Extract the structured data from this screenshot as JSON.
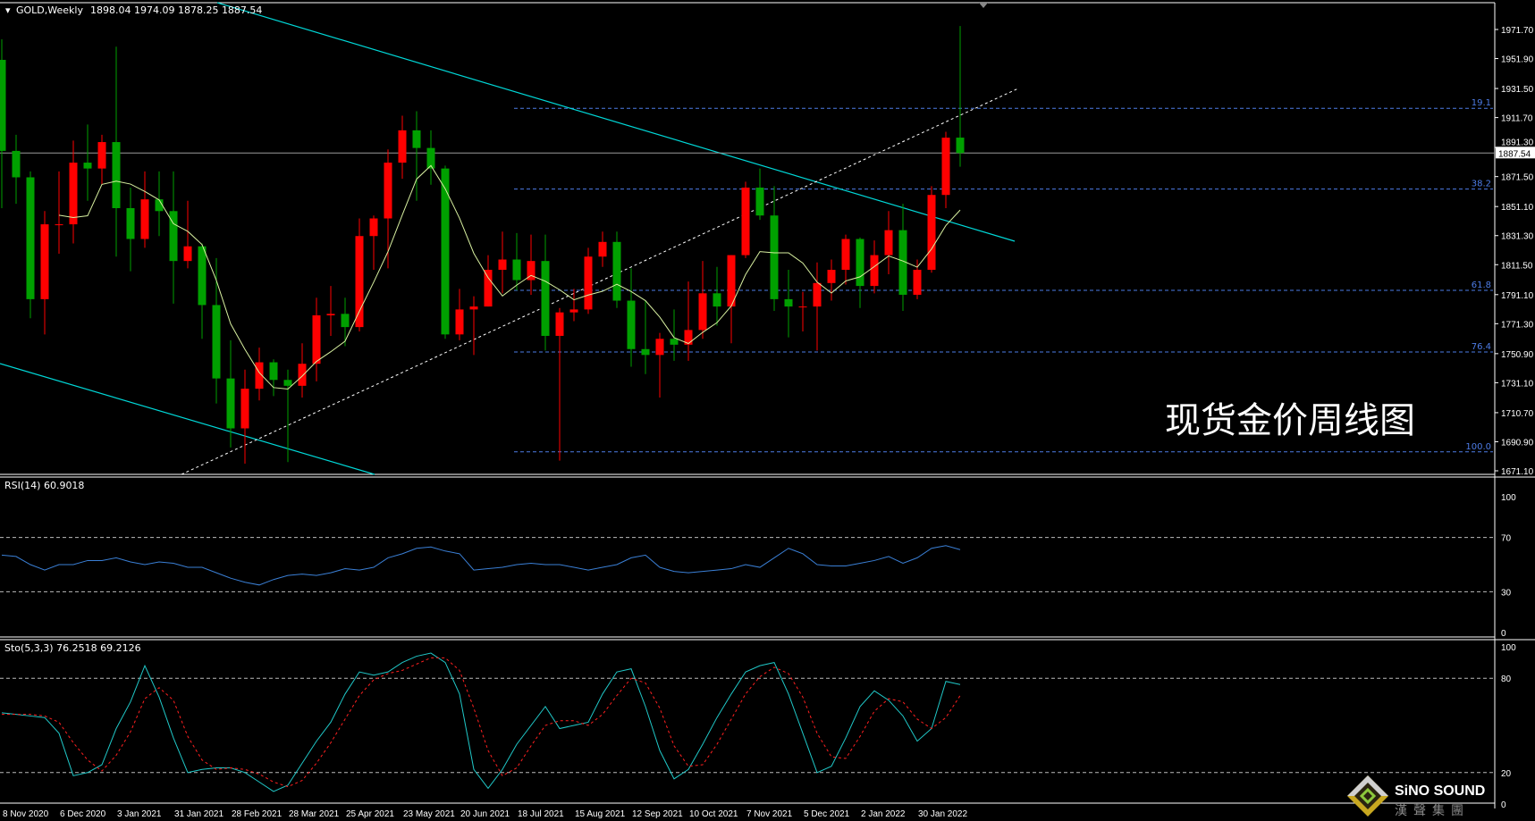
{
  "chart_data": [
    {
      "type": "candlestick",
      "header": {
        "symbol": "GOLD,Weekly",
        "ohlc": "1898.04 1974.09 1878.25 1887.54"
      },
      "overlay_text": "现货金价周线图",
      "current_price_label": "1887.54",
      "y_ticks": [
        "1971.70",
        "1951.90",
        "1931.50",
        "1911.70",
        "1891.30",
        "1871.50",
        "1851.10",
        "1831.30",
        "1811.50",
        "1791.10",
        "1771.30",
        "1750.90",
        "1731.10",
        "1710.70",
        "1690.90",
        "1671.10"
      ],
      "ylim": [
        1671.1,
        1971.7
      ],
      "x_tick_labels": [
        {
          "index": 0,
          "label": "8 Nov 2020"
        },
        {
          "index": 4,
          "label": "6 Dec 2020"
        },
        {
          "index": 8,
          "label": "3 Jan 2021"
        },
        {
          "index": 12,
          "label": "31 Jan 2021"
        },
        {
          "index": 16,
          "label": "28 Feb 2021"
        },
        {
          "index": 20,
          "label": "28 Mar 2021"
        },
        {
          "index": 24,
          "label": "25 Apr 2021"
        },
        {
          "index": 28,
          "label": "23 May 2021"
        },
        {
          "index": 32,
          "label": "20 Jun 2021"
        },
        {
          "index": 36,
          "label": "18 Jul 2021"
        },
        {
          "index": 40,
          "label": "15 Aug 2021"
        },
        {
          "index": 44,
          "label": "12 Sep 2021"
        },
        {
          "index": 48,
          "label": "10 Oct 2021"
        },
        {
          "index": 52,
          "label": "7 Nov 2021"
        },
        {
          "index": 56,
          "label": "5 Dec 2021"
        },
        {
          "index": 60,
          "label": "2 Jan 2022"
        },
        {
          "index": 64,
          "label": "30 Jan 2022"
        }
      ],
      "ohlc": [
        [
          1951,
          1965,
          1850,
          1889
        ],
        [
          1889,
          1900,
          1853,
          1871
        ],
        [
          1871,
          1875,
          1775,
          1788
        ],
        [
          1788,
          1848,
          1764,
          1839
        ],
        [
          1839,
          1875,
          1819,
          1839
        ],
        [
          1839,
          1896,
          1826,
          1881
        ],
        [
          1881,
          1907,
          1855,
          1877
        ],
        [
          1877,
          1900,
          1866,
          1895
        ],
        [
          1895,
          1960,
          1817,
          1850
        ],
        [
          1850,
          1864,
          1807,
          1829
        ],
        [
          1829,
          1875,
          1823,
          1856
        ],
        [
          1856,
          1875,
          1831,
          1848
        ],
        [
          1848,
          1875,
          1785,
          1814
        ],
        [
          1814,
          1855,
          1809,
          1824
        ],
        [
          1824,
          1826,
          1761,
          1784
        ],
        [
          1784,
          1816,
          1717,
          1734
        ],
        [
          1734,
          1760,
          1687,
          1700
        ],
        [
          1700,
          1740,
          1676,
          1727
        ],
        [
          1727,
          1755,
          1719,
          1745
        ],
        [
          1745,
          1747,
          1722,
          1733
        ],
        [
          1733,
          1740,
          1677,
          1729
        ],
        [
          1729,
          1758,
          1721,
          1744
        ],
        [
          1744,
          1789,
          1732,
          1777
        ],
        [
          1777,
          1797,
          1763,
          1778
        ],
        [
          1778,
          1789,
          1756,
          1769
        ],
        [
          1769,
          1843,
          1766,
          1831
        ],
        [
          1831,
          1845,
          1808,
          1843
        ],
        [
          1843,
          1890,
          1809,
          1881
        ],
        [
          1881,
          1913,
          1870,
          1903
        ],
        [
          1903,
          1916,
          1855,
          1891
        ],
        [
          1891,
          1903,
          1866,
          1877
        ],
        [
          1877,
          1879,
          1761,
          1764
        ],
        [
          1764,
          1795,
          1760,
          1781
        ],
        [
          1781,
          1790,
          1750,
          1783
        ],
        [
          1783,
          1818,
          1783,
          1808
        ],
        [
          1808,
          1834,
          1792,
          1815
        ],
        [
          1815,
          1833,
          1794,
          1801
        ],
        [
          1801,
          1832,
          1791,
          1814
        ],
        [
          1814,
          1832,
          1753,
          1763
        ],
        [
          1763,
          1782,
          1678,
          1779
        ],
        [
          1779,
          1795,
          1773,
          1781
        ],
        [
          1781,
          1823,
          1778,
          1817
        ],
        [
          1817,
          1834,
          1810,
          1827
        ],
        [
          1827,
          1834,
          1782,
          1787
        ],
        [
          1787,
          1809,
          1742,
          1754
        ],
        [
          1754,
          1787,
          1737,
          1750
        ],
        [
          1750,
          1765,
          1721,
          1761
        ],
        [
          1761,
          1781,
          1746,
          1757
        ],
        [
          1757,
          1800,
          1746,
          1767
        ],
        [
          1767,
          1814,
          1761,
          1792
        ],
        [
          1792,
          1810,
          1770,
          1783
        ],
        [
          1783,
          1818,
          1758,
          1818
        ],
        [
          1818,
          1868,
          1816,
          1864
        ],
        [
          1864,
          1877,
          1842,
          1845
        ],
        [
          1845,
          1865,
          1780,
          1788
        ],
        [
          1788,
          1808,
          1762,
          1783
        ],
        [
          1783,
          1793,
          1766,
          1783
        ],
        [
          1783,
          1813,
          1753,
          1799
        ],
        [
          1799,
          1815,
          1787,
          1808
        ],
        [
          1808,
          1832,
          1798,
          1829
        ],
        [
          1829,
          1830,
          1782,
          1797
        ],
        [
          1797,
          1828,
          1792,
          1818
        ],
        [
          1818,
          1848,
          1805,
          1835
        ],
        [
          1835,
          1853,
          1780,
          1791
        ],
        [
          1791,
          1815,
          1788,
          1808
        ],
        [
          1808,
          1865,
          1806,
          1859
        ],
        [
          1859,
          1902,
          1850,
          1898
        ],
        [
          1898.04,
          1974.09,
          1878.25,
          1887.54
        ]
      ],
      "colors": {
        "bull": "#ff0000",
        "bear": "#00a000",
        "ma": "#d8f0a0",
        "trendline": "#00d8d8",
        "fib": "#4d7ce6"
      },
      "fibonacci": [
        {
          "label": "19.1",
          "price": 1918
        },
        {
          "label": "38.2",
          "price": 1863
        },
        {
          "label": "61.8",
          "price": 1794
        },
        {
          "label": "76.4",
          "price": 1752
        },
        {
          "label": "100.0",
          "price": 1684
        }
      ]
    },
    {
      "type": "line",
      "header": "RSI(14) 60.9018",
      "y_ticks": [
        "100",
        "70",
        "30",
        "0"
      ],
      "ylim": [
        0,
        100
      ],
      "levels": [
        70,
        30
      ],
      "color": "#3a7fd5",
      "values": [
        57,
        56,
        50,
        46,
        50,
        50,
        53,
        53,
        55,
        52,
        50,
        52,
        51,
        48,
        48,
        44,
        40,
        37,
        35,
        39,
        42,
        43,
        42,
        44,
        47,
        46,
        48,
        55,
        58,
        62,
        63,
        60,
        58,
        46,
        47,
        48,
        50,
        51,
        50,
        50,
        48,
        46,
        48,
        50,
        55,
        57,
        48,
        45,
        44,
        45,
        46,
        47,
        50,
        48,
        55,
        62,
        58,
        50,
        49,
        49,
        51,
        53,
        56,
        51,
        55,
        62,
        64,
        61
      ]
    },
    {
      "type": "line",
      "header": "Sto(5,3,3) 76.2518 69.2126",
      "y_ticks": [
        "100",
        "80",
        "20",
        "0"
      ],
      "ylim": [
        0,
        100
      ],
      "levels": [
        80,
        20
      ],
      "series": [
        {
          "color": "#20c8c8",
          "values": [
            58,
            57,
            56,
            55,
            45,
            18,
            20,
            25,
            48,
            65,
            88,
            68,
            42,
            20,
            22,
            23,
            23,
            20,
            14,
            8,
            12,
            26,
            40,
            52,
            70,
            84,
            82,
            84,
            90,
            94,
            96,
            90,
            70,
            22,
            10,
            22,
            38,
            50,
            62,
            48,
            50,
            52,
            70,
            84,
            86,
            62,
            34,
            16,
            22,
            38,
            55,
            70,
            84,
            88,
            90,
            70,
            45,
            20,
            24,
            42,
            62,
            72,
            66,
            56,
            40,
            48,
            78,
            76
          ]
        },
        {
          "color": "#ff2020",
          "dashed": true,
          "values": [
            57,
            57,
            57,
            56,
            52,
            39,
            28,
            21,
            31,
            46,
            67,
            74,
            66,
            43,
            28,
            22,
            23,
            22,
            19,
            14,
            11,
            15,
            26,
            39,
            54,
            69,
            79,
            83,
            85,
            89,
            93,
            93,
            85,
            61,
            34,
            18,
            23,
            37,
            50,
            53,
            53,
            50,
            57,
            69,
            80,
            77,
            61,
            37,
            24,
            25,
            38,
            54,
            70,
            81,
            87,
            83,
            68,
            45,
            30,
            29,
            43,
            59,
            67,
            65,
            54,
            48,
            55,
            69
          ]
        }
      ]
    }
  ],
  "logo": {
    "text_en": "SiNO SOUND",
    "text_cn": "漢聲集團"
  }
}
